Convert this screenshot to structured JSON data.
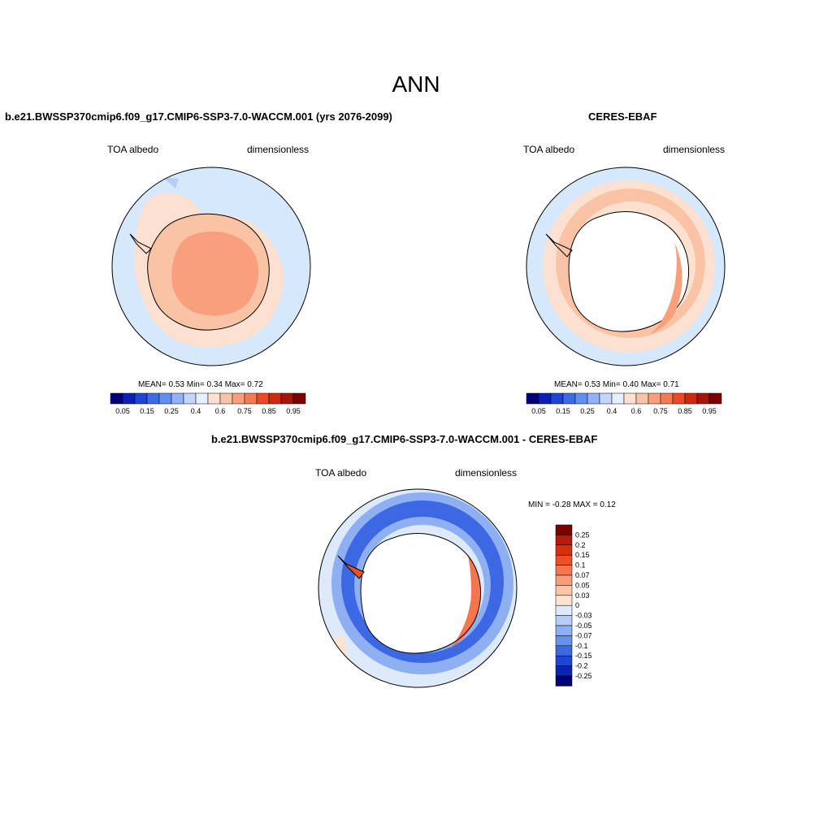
{
  "title": "ANN",
  "colors": {
    "page_bg": "#ffffff",
    "ocean_base": "#d6e8fb",
    "land_none": "#ffffff",
    "outline": "#000000"
  },
  "panels": {
    "model": {
      "title": "b.e21.BWSSP370cmip6.f09_g17.CMIP6-SSP3-7.0-WACCM.001 (yrs 2076-2099)",
      "left_label": "TOA albedo",
      "right_label": "dimensionless",
      "stats": "MEAN=   0.53  Min=   0.34  Max=   0.72"
    },
    "obs": {
      "title": "CERES-EBAF",
      "left_label": "TOA albedo",
      "right_label": "dimensionless",
      "stats": "MEAN=   0.53  Min=   0.40  Max=   0.71"
    },
    "diff": {
      "title": "b.e21.BWSSP370cmip6.f09_g17.CMIP6-SSP3-7.0-WACCM.001 - CERES-EBAF",
      "left_label": "TOA albedo",
      "right_label": "dimensionless",
      "stats": "MIN =  -0.28 MAX =   0.12"
    }
  },
  "abs_colorbar": {
    "colors": [
      "#00007d",
      "#0c1fb3",
      "#1f44d6",
      "#3a6ce8",
      "#5f8ff2",
      "#8fb3f6",
      "#c1d6fa",
      "#e6f0fd",
      "#fde1d0",
      "#fbc3a6",
      "#f8a07c",
      "#f47a52",
      "#ea4a25",
      "#cd2a12",
      "#a81508",
      "#7d0000"
    ],
    "tick_labels": [
      "0.05",
      "0.15",
      "0.25",
      "0.4",
      "0.6",
      "0.75",
      "0.85",
      "0.95"
    ]
  },
  "diff_colorbar": {
    "colors": [
      "#7d0000",
      "#b81a0a",
      "#d8300f",
      "#ee4e22",
      "#f5764c",
      "#f99d78",
      "#fcc5a5",
      "#fde3d0",
      "#ddeafc",
      "#b5cdf7",
      "#8eb0f3",
      "#6890ee",
      "#3c68e4",
      "#1c47d2",
      "#0a26b0",
      "#00007d"
    ],
    "tick_labels": [
      "0.25",
      "0.2",
      "0.15",
      "0.1",
      "0.07",
      "0.05",
      "0.03",
      "0",
      "-0.03",
      "-0.05",
      "-0.07",
      "-0.1",
      "-0.15",
      "-0.2",
      "-0.25"
    ]
  }
}
